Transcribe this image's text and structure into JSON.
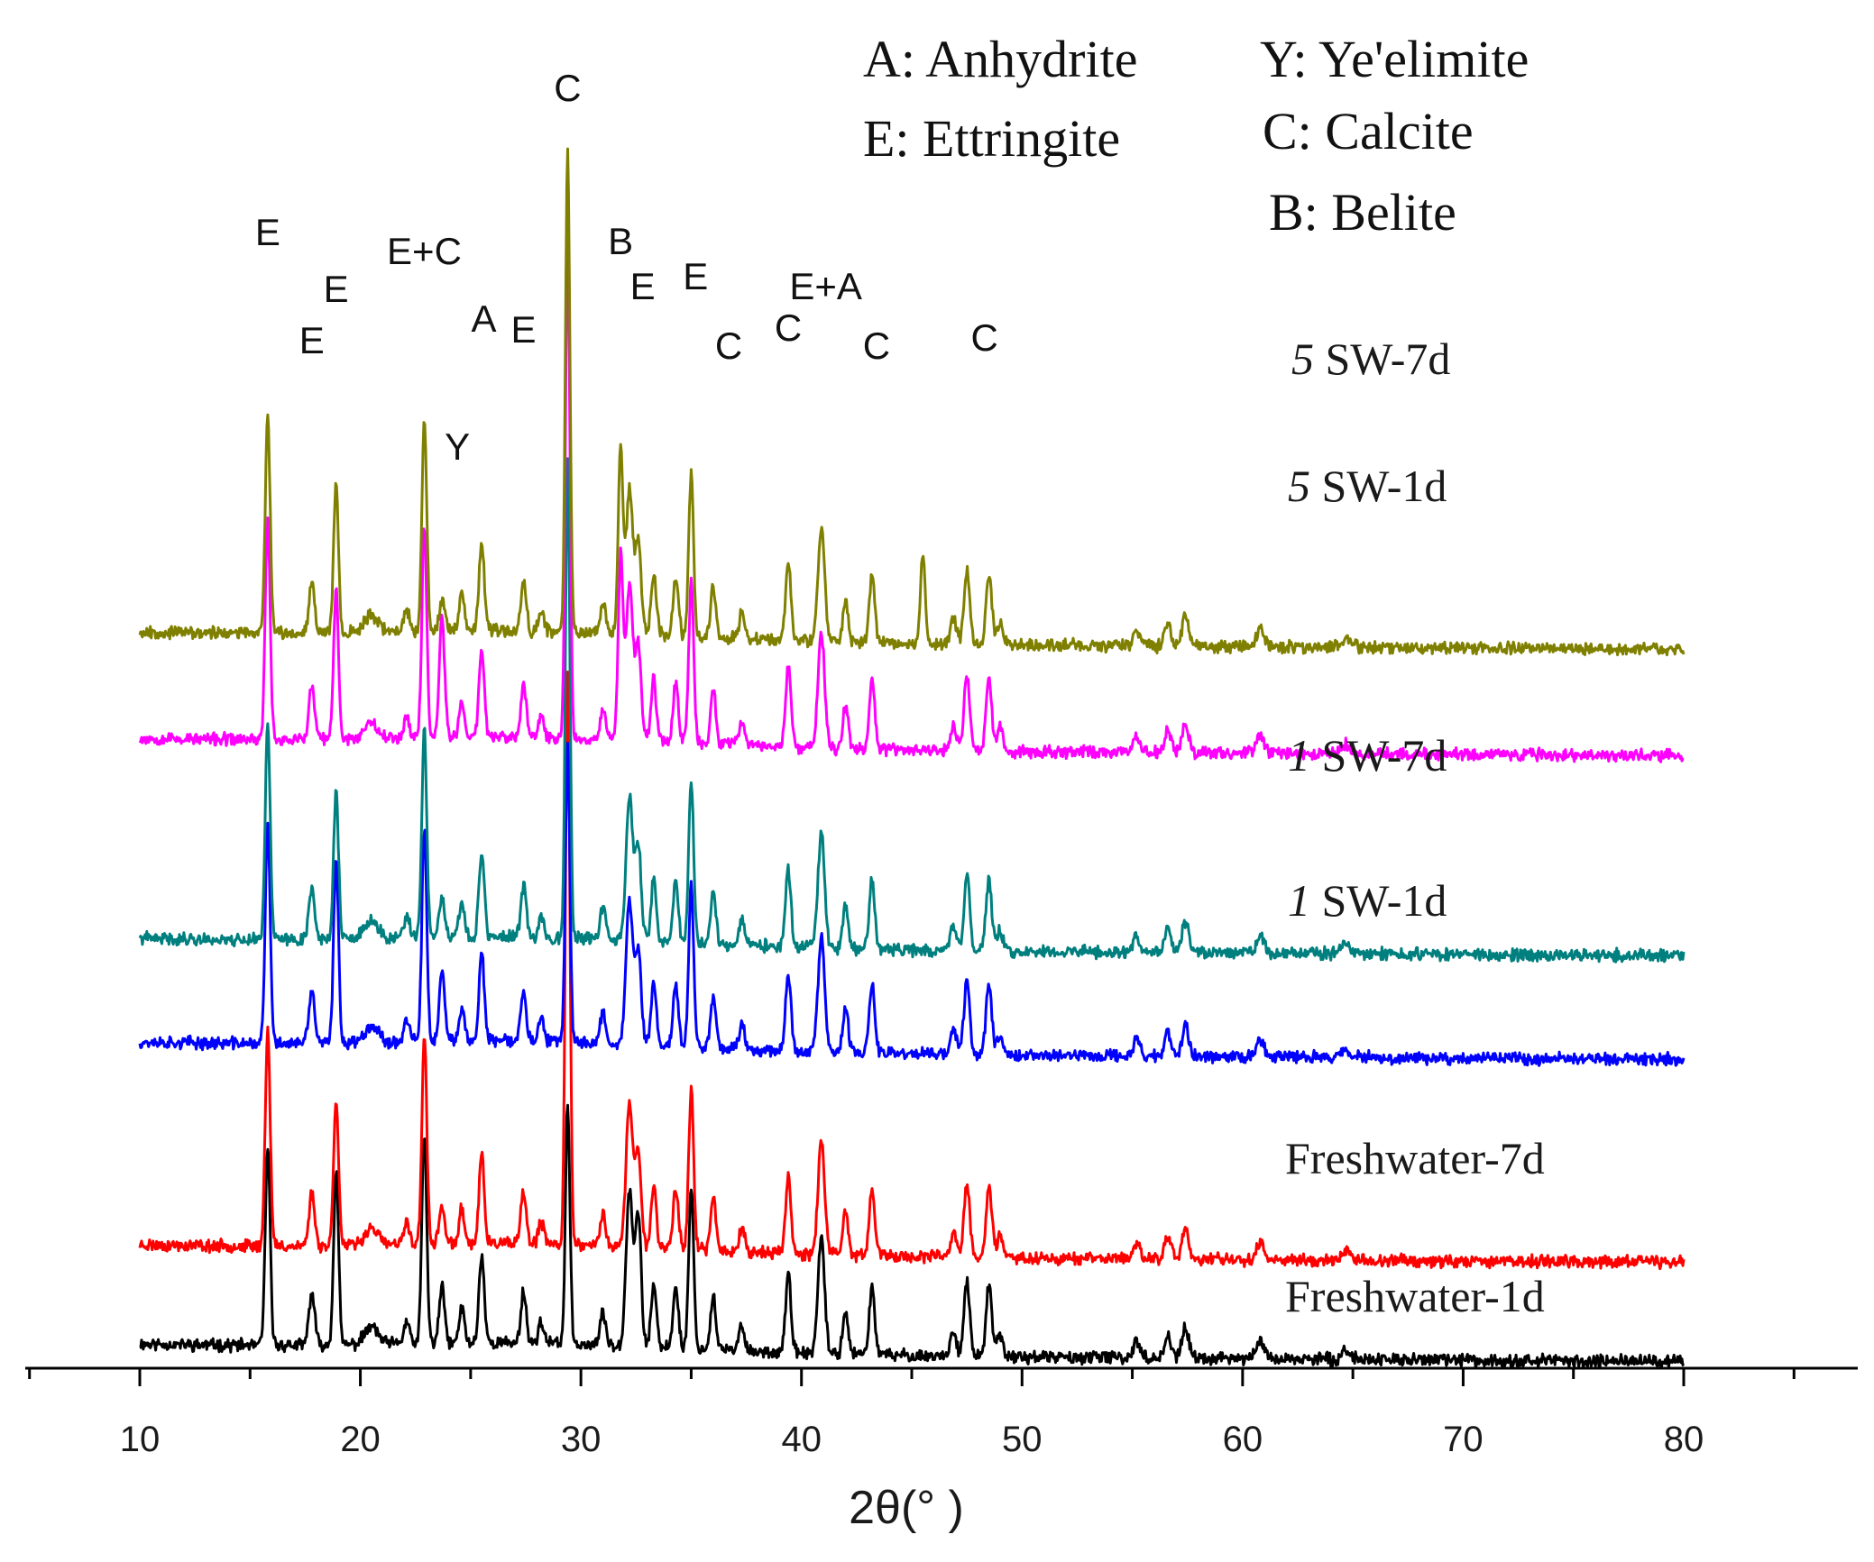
{
  "chart_data": {
    "type": "line",
    "title": "",
    "xlabel": "2θ(° )",
    "ylabel": "",
    "xlim": [
      5,
      88
    ],
    "x_ticks": [
      10,
      20,
      30,
      40,
      50,
      60,
      70,
      80
    ],
    "x_tick_labels": [
      "10",
      "20",
      "30",
      "40",
      "50",
      "60",
      "70",
      "80"
    ],
    "grid": false,
    "legend": [
      {
        "key": "A",
        "name": "Anhydrite",
        "text": "A: Anhydrite"
      },
      {
        "key": "Y",
        "name": "Ye'elimite",
        "text": "Y: Ye'elimite"
      },
      {
        "key": "E",
        "name": "Ettringite",
        "text": "E: Ettringite"
      },
      {
        "key": "C",
        "name": "Calcite",
        "text": "C: Calcite"
      },
      {
        "key": "B",
        "name": "Belite",
        "text": "B: Belite"
      }
    ],
    "peaks": [
      {
        "two_theta": 15.8,
        "int": 0.5,
        "w": 0.11
      },
      {
        "two_theta": 17.8,
        "int": 0.12,
        "w": 0.13
      },
      {
        "two_theta": 18.9,
        "int": 0.34,
        "w": 0.11
      },
      {
        "two_theta": 20.5,
        "int": 0.04,
        "w": 0.3
      },
      {
        "two_theta": 22.1,
        "int": 0.05,
        "w": 0.13
      },
      {
        "two_theta": 22.9,
        "int": 0.48,
        "w": 0.11
      },
      {
        "two_theta": 23.7,
        "int": 0.1,
        "w": 0.12
      },
      {
        "two_theta": 24.6,
        "int": 0.08,
        "w": 0.12
      },
      {
        "two_theta": 25.5,
        "int": 0.2,
        "w": 0.12
      },
      {
        "two_theta": 27.4,
        "int": 0.12,
        "w": 0.12
      },
      {
        "two_theta": 28.2,
        "int": 0.05,
        "w": 0.12
      },
      {
        "two_theta": 29.4,
        "int": 1.0,
        "w": 0.1
      },
      {
        "two_theta": 31.0,
        "int": 0.07,
        "w": 0.13
      },
      {
        "two_theta": 32.2,
        "int": 0.33,
        "w": 0.15
      },
      {
        "two_theta": 32.6,
        "int": 0.22,
        "w": 0.13
      },
      {
        "two_theta": 33.3,
        "int": 0.14,
        "w": 0.12
      },
      {
        "two_theta": 34.3,
        "int": 0.14,
        "w": 0.12
      },
      {
        "two_theta": 35.0,
        "int": 0.37,
        "w": 0.11
      },
      {
        "two_theta": 36.0,
        "int": 0.12,
        "w": 0.12
      },
      {
        "two_theta": 37.3,
        "int": 0.06,
        "w": 0.12
      },
      {
        "two_theta": 39.4,
        "int": 0.18,
        "w": 0.12
      },
      {
        "two_theta": 40.9,
        "int": 0.26,
        "w": 0.15
      },
      {
        "two_theta": 42.0,
        "int": 0.1,
        "w": 0.12
      },
      {
        "two_theta": 43.2,
        "int": 0.16,
        "w": 0.12
      },
      {
        "two_theta": 46.9,
        "int": 0.06,
        "w": 0.13
      },
      {
        "two_theta": 47.5,
        "int": 0.17,
        "w": 0.13
      },
      {
        "two_theta": 48.5,
        "int": 0.16,
        "w": 0.13
      },
      {
        "two_theta": 49.0,
        "int": 0.05,
        "w": 0.13
      },
      {
        "two_theta": 55.2,
        "int": 0.04,
        "w": 0.15
      },
      {
        "two_theta": 56.6,
        "int": 0.05,
        "w": 0.15
      },
      {
        "two_theta": 57.4,
        "int": 0.07,
        "w": 0.15
      },
      {
        "two_theta": 60.8,
        "int": 0.04,
        "w": 0.18
      },
      {
        "two_theta": 64.7,
        "int": 0.02,
        "w": 0.2
      }
    ],
    "series": [
      {
        "name": "Freshwater-1d",
        "label_prefix": "",
        "label_text": "Freshwater-1d",
        "color": "#000000",
        "offset": 0,
        "scale": 1.0,
        "seed": 11,
        "mods": [
          {
            "two_theta": 29.4,
            "int": 0.55
          },
          {
            "two_theta": 32.2,
            "int": 0.36
          },
          {
            "two_theta": 32.6,
            "int": 0.3
          },
          {
            "two_theta": 23.7,
            "int": 0.13
          },
          {
            "two_theta": 18.9,
            "int": 0.4
          },
          {
            "two_theta": 15.8,
            "int": 0.45
          }
        ]
      },
      {
        "name": "Freshwater-7d",
        "label_prefix": "",
        "label_text": "Freshwater-7d",
        "color": "#ff0000",
        "offset": 110,
        "scale": 1.0,
        "seed": 23,
        "mods": [
          {
            "two_theta": 29.4,
            "int": 1.32
          },
          {
            "two_theta": 23.7,
            "int": 0.09
          }
        ]
      },
      {
        "name": "1 SW-1d",
        "label_prefix": "1",
        "label_text": "SW-1d",
        "color": "#0000ff",
        "offset": 335,
        "scale": 1.0,
        "seed": 37,
        "mods": [
          {
            "two_theta": 29.4,
            "int": 0.68
          },
          {
            "two_theta": 23.7,
            "int": 0.16
          },
          {
            "two_theta": 18.9,
            "int": 0.42
          },
          {
            "two_theta": 32.2,
            "int": 0.33
          }
        ]
      },
      {
        "name": "1 SW-7d",
        "label_prefix": "1",
        "label_text": "SW-7d",
        "color": "#007f7f",
        "offset": 450,
        "scale": 1.0,
        "seed": 41,
        "mods": [
          {
            "two_theta": 29.4,
            "int": 1.1
          },
          {
            "two_theta": 23.7,
            "int": 0.09
          }
        ]
      },
      {
        "name": "5 SW-1d",
        "label_prefix": "5",
        "label_text": "SW-1d",
        "color": "#ff00ff",
        "offset": 672,
        "scale": 1.0,
        "seed": 53,
        "mods": [
          {
            "two_theta": 29.4,
            "int": 1.15
          },
          {
            "two_theta": 23.7,
            "int": 0.28
          },
          {
            "two_theta": 31.8,
            "int": 0.42
          },
          {
            "two_theta": 32.2,
            "int": 0.36
          }
        ]
      },
      {
        "name": "5 SW-7d",
        "label_prefix": "5",
        "label_text": "SW-7d",
        "color": "#808000",
        "offset": 790,
        "scale": 1.0,
        "seed": 67,
        "mods": [
          {
            "two_theta": 29.4,
            "int": 1.1
          },
          {
            "two_theta": 31.8,
            "int": 0.42
          },
          {
            "two_theta": 45.5,
            "int": 0.2
          },
          {
            "two_theta": 23.7,
            "int": 0.07
          }
        ]
      }
    ],
    "peak_labels": [
      {
        "text": "E",
        "two_theta": 15.8
      },
      {
        "text": "E",
        "two_theta": 17.8
      },
      {
        "text": "E",
        "two_theta": 18.9
      },
      {
        "text": "E+C",
        "two_theta": 22.9
      },
      {
        "text": "A",
        "two_theta": 25.6
      },
      {
        "text": "E",
        "two_theta": 27.4
      },
      {
        "text": "C",
        "two_theta": 29.4
      },
      {
        "text": "B",
        "two_theta": 31.8
      },
      {
        "text": "E",
        "two_theta": 32.8
      },
      {
        "text": "E",
        "two_theta": 35.2
      },
      {
        "text": "C",
        "two_theta": 36.7
      },
      {
        "text": "C",
        "two_theta": 39.4
      },
      {
        "text": "E+A",
        "two_theta": 41.1
      },
      {
        "text": "C",
        "two_theta": 43.4
      },
      {
        "text": "C",
        "two_theta": 48.3
      },
      {
        "text": "Y",
        "two_theta": 24.4
      }
    ]
  }
}
